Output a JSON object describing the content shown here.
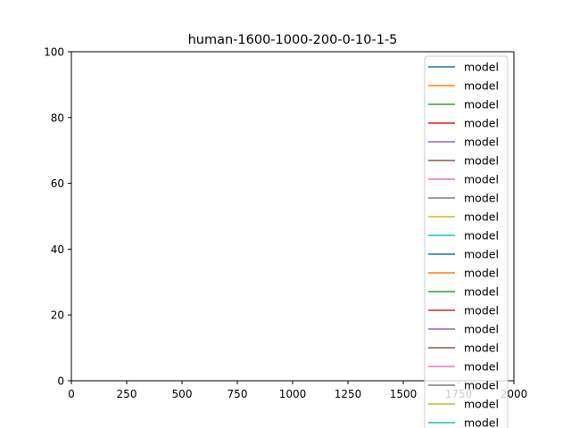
{
  "chart_data": {
    "type": "line",
    "title": "human-1600-1000-200-0-10-1-5",
    "xlabel": "",
    "ylabel": "",
    "xlim": [
      0,
      2000
    ],
    "ylim": [
      0,
      100
    ],
    "x_ticks": [
      0,
      250,
      500,
      750,
      1000,
      1250,
      1500,
      1750,
      2000
    ],
    "y_ticks": [
      0,
      20,
      40,
      60,
      80,
      100
    ],
    "grid": false,
    "legend_position": "top-right",
    "series": [
      {
        "name": "model",
        "color": "#1f77b4",
        "values": []
      },
      {
        "name": "model",
        "color": "#ff7f0e",
        "values": []
      },
      {
        "name": "model",
        "color": "#2ca02c",
        "values": []
      },
      {
        "name": "model",
        "color": "#d62728",
        "values": []
      },
      {
        "name": "model",
        "color": "#9467bd",
        "values": []
      },
      {
        "name": "model",
        "color": "#8c564b",
        "values": []
      },
      {
        "name": "model",
        "color": "#e377c2",
        "values": []
      },
      {
        "name": "model",
        "color": "#7f7f7f",
        "values": []
      },
      {
        "name": "model",
        "color": "#bcbd22",
        "values": []
      },
      {
        "name": "model",
        "color": "#17becf",
        "values": []
      },
      {
        "name": "model",
        "color": "#1f77b4",
        "values": []
      },
      {
        "name": "model",
        "color": "#ff7f0e",
        "values": []
      },
      {
        "name": "model",
        "color": "#2ca02c",
        "values": []
      },
      {
        "name": "model",
        "color": "#d62728",
        "values": []
      },
      {
        "name": "model",
        "color": "#9467bd",
        "values": []
      },
      {
        "name": "model",
        "color": "#8c564b",
        "values": []
      },
      {
        "name": "model",
        "color": "#e377c2",
        "values": []
      },
      {
        "name": "model",
        "color": "#7f7f7f",
        "values": []
      },
      {
        "name": "model",
        "color": "#bcbd22",
        "values": []
      },
      {
        "name": "model",
        "color": "#17becf",
        "values": []
      }
    ]
  }
}
